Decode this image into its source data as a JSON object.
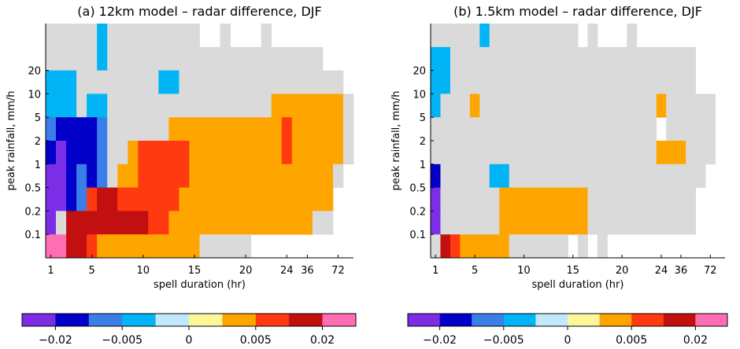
{
  "chart_data": [
    {
      "type": "heatmap",
      "title": "(a) 12km model – radar difference, DJF",
      "xlabel": "spell duration (hr)",
      "ylabel": "peak rainfall, mm/h",
      "x_ticks": [
        "1",
        "5",
        "10",
        "15",
        "20",
        "24",
        "36",
        "72"
      ],
      "y_ticks": [
        "0.1",
        "0.2",
        "0.5",
        "1",
        "2",
        "5",
        "10",
        "20"
      ],
      "colorbar": {
        "colors": [
          "#7b2ee6",
          "#0000c8",
          "#3a7ee8",
          "#00b4f5",
          "#c2e8fa",
          "#fff59a",
          "#ffa500",
          "#ff3a10",
          "#c21010",
          "#ff6eb4"
        ],
        "tick_labels": [
          "−0.02",
          "−0.005",
          "0",
          "0.005",
          "0.02"
        ]
      },
      "cells": [
        {
          "x0": 0,
          "x1": 5,
          "y0": 9,
          "y1": 10,
          "v": "0"
        },
        {
          "x0": 5,
          "x1": 6,
          "y0": 9,
          "y1": 10,
          "v": "-0.004"
        },
        {
          "x0": 6,
          "x1": 15,
          "y0": 9,
          "y1": 10,
          "v": "0"
        },
        {
          "x0": 17,
          "x1": 18,
          "y0": 9,
          "y1": 10,
          "v": "0"
        },
        {
          "x0": 21,
          "x1": 22,
          "y0": 9,
          "y1": 10,
          "v": "0"
        },
        {
          "x0": 0,
          "x1": 5,
          "y0": 8,
          "y1": 9,
          "v": "0"
        },
        {
          "x0": 5,
          "x1": 6,
          "y0": 8,
          "y1": 9,
          "v": "-0.004"
        },
        {
          "x0": 6,
          "x1": 27,
          "y0": 8,
          "y1": 9,
          "v": "0"
        },
        {
          "x0": 0,
          "x1": 3,
          "y0": 7,
          "y1": 8,
          "v": "-0.004"
        },
        {
          "x0": 3,
          "x1": 11,
          "y0": 7,
          "y1": 8,
          "v": "0"
        },
        {
          "x0": 11,
          "x1": 13,
          "y0": 7,
          "y1": 8,
          "v": "-0.004"
        },
        {
          "x0": 13,
          "x1": 29,
          "y0": 7,
          "y1": 8,
          "v": "0"
        },
        {
          "x0": 0,
          "x1": 3,
          "y0": 6,
          "y1": 7,
          "v": "-0.004"
        },
        {
          "x0": 3,
          "x1": 4,
          "y0": 6,
          "y1": 7,
          "v": "0"
        },
        {
          "x0": 4,
          "x1": 6,
          "y0": 6,
          "y1": 7,
          "v": "-0.004"
        },
        {
          "x0": 6,
          "x1": 22,
          "y0": 6,
          "y1": 7,
          "v": "0"
        },
        {
          "x0": 22,
          "x1": 29,
          "y0": 6,
          "y1": 7,
          "v": "0.004"
        },
        {
          "x0": 29,
          "x1": 30,
          "y0": 6,
          "y1": 7,
          "v": "0"
        },
        {
          "x0": 0,
          "x1": 1,
          "y0": 5,
          "y1": 6,
          "v": "-0.007"
        },
        {
          "x0": 1,
          "x1": 5,
          "y0": 5,
          "y1": 6,
          "v": "-0.01"
        },
        {
          "x0": 5,
          "x1": 6,
          "y0": 5,
          "y1": 6,
          "v": "-0.007"
        },
        {
          "x0": 6,
          "x1": 12,
          "y0": 5,
          "y1": 6,
          "v": "0"
        },
        {
          "x0": 12,
          "x1": 23,
          "y0": 5,
          "y1": 6,
          "v": "0.004"
        },
        {
          "x0": 23,
          "x1": 24,
          "y0": 5,
          "y1": 6,
          "v": "0.008"
        },
        {
          "x0": 24,
          "x1": 29,
          "y0": 5,
          "y1": 6,
          "v": "0.004"
        },
        {
          "x0": 29,
          "x1": 30,
          "y0": 5,
          "y1": 6,
          "v": "0"
        },
        {
          "x0": 0,
          "x1": 1,
          "y0": 4,
          "y1": 5,
          "v": "-0.015"
        },
        {
          "x0": 1,
          "x1": 2,
          "y0": 4,
          "y1": 5,
          "v": "-0.03"
        },
        {
          "x0": 2,
          "x1": 5,
          "y0": 4,
          "y1": 5,
          "v": "-0.015"
        },
        {
          "x0": 5,
          "x1": 6,
          "y0": 4,
          "y1": 5,
          "v": "-0.007"
        },
        {
          "x0": 6,
          "x1": 8,
          "y0": 4,
          "y1": 5,
          "v": "0"
        },
        {
          "x0": 8,
          "x1": 9,
          "y0": 4,
          "y1": 5,
          "v": "0.004"
        },
        {
          "x0": 9,
          "x1": 14,
          "y0": 4,
          "y1": 5,
          "v": "0.008"
        },
        {
          "x0": 14,
          "x1": 23,
          "y0": 4,
          "y1": 5,
          "v": "0.004"
        },
        {
          "x0": 23,
          "x1": 24,
          "y0": 4,
          "y1": 5,
          "v": "0.008"
        },
        {
          "x0": 24,
          "x1": 29,
          "y0": 4,
          "y1": 5,
          "v": "0.004"
        },
        {
          "x0": 29,
          "x1": 30,
          "y0": 4,
          "y1": 5,
          "v": "0"
        },
        {
          "x0": 0,
          "x1": 2,
          "y0": 3,
          "y1": 4,
          "v": "-0.03"
        },
        {
          "x0": 2,
          "x1": 3,
          "y0": 3,
          "y1": 4,
          "v": "-0.015"
        },
        {
          "x0": 3,
          "x1": 4,
          "y0": 3,
          "y1": 4,
          "v": "-0.007"
        },
        {
          "x0": 4,
          "x1": 5,
          "y0": 3,
          "y1": 4,
          "v": "-0.015"
        },
        {
          "x0": 5,
          "x1": 6,
          "y0": 3,
          "y1": 4,
          "v": "-0.007"
        },
        {
          "x0": 6,
          "x1": 7,
          "y0": 3,
          "y1": 4,
          "v": "0"
        },
        {
          "x0": 7,
          "x1": 9,
          "y0": 3,
          "y1": 4,
          "v": "0.004"
        },
        {
          "x0": 9,
          "x1": 14,
          "y0": 3,
          "y1": 4,
          "v": "0.008"
        },
        {
          "x0": 14,
          "x1": 28,
          "y0": 3,
          "y1": 4,
          "v": "0.004"
        },
        {
          "x0": 28,
          "x1": 29,
          "y0": 3,
          "y1": 4,
          "v": "0"
        },
        {
          "x0": 0,
          "x1": 2,
          "y0": 2,
          "y1": 3,
          "v": "-0.03"
        },
        {
          "x0": 2,
          "x1": 3,
          "y0": 2,
          "y1": 3,
          "v": "-0.015"
        },
        {
          "x0": 3,
          "x1": 4,
          "y0": 2,
          "y1": 3,
          "v": "-0.007"
        },
        {
          "x0": 4,
          "x1": 5,
          "y0": 2,
          "y1": 3,
          "v": "0.008"
        },
        {
          "x0": 5,
          "x1": 7,
          "y0": 2,
          "y1": 3,
          "v": "0.012"
        },
        {
          "x0": 7,
          "x1": 13,
          "y0": 2,
          "y1": 3,
          "v": "0.008"
        },
        {
          "x0": 13,
          "x1": 28,
          "y0": 2,
          "y1": 3,
          "v": "0.004"
        },
        {
          "x0": 0,
          "x1": 1,
          "y0": 1,
          "y1": 2,
          "v": "-0.03"
        },
        {
          "x0": 1,
          "x1": 2,
          "y0": 1,
          "y1": 2,
          "v": "0"
        },
        {
          "x0": 2,
          "x1": 8,
          "y0": 1,
          "y1": 2,
          "v": "0.02"
        },
        {
          "x0": 8,
          "x1": 10,
          "y0": 1,
          "y1": 2,
          "v": "0.012"
        },
        {
          "x0": 10,
          "x1": 12,
          "y0": 1,
          "y1": 2,
          "v": "0.008"
        },
        {
          "x0": 12,
          "x1": 26,
          "y0": 1,
          "y1": 2,
          "v": "0.004"
        },
        {
          "x0": 26,
          "x1": 28,
          "y0": 1,
          "y1": 2,
          "v": "0"
        },
        {
          "x0": 0,
          "x1": 2,
          "y0": 0,
          "y1": 1,
          "v": "0.03"
        },
        {
          "x0": 2,
          "x1": 3,
          "y0": 0,
          "y1": 1,
          "v": "0.02"
        },
        {
          "x0": 3,
          "x1": 4,
          "y0": 0,
          "y1": 1,
          "v": "0.012"
        },
        {
          "x0": 4,
          "x1": 5,
          "y0": 0,
          "y1": 1,
          "v": "0.008"
        },
        {
          "x0": 5,
          "x1": 15,
          "y0": 0,
          "y1": 1,
          "v": "0.004"
        },
        {
          "x0": 15,
          "x1": 20,
          "y0": 0,
          "y1": 1,
          "v": "0"
        }
      ]
    },
    {
      "type": "heatmap",
      "title": "(b) 1.5km model – radar difference, DJF",
      "xlabel": "spell duration (hr)",
      "ylabel": "peak rainfall, mm/h",
      "x_ticks": [
        "1",
        "5",
        "10",
        "15",
        "20",
        "24",
        "36",
        "72"
      ],
      "y_ticks": [
        "0.1",
        "0.2",
        "0.5",
        "1",
        "2",
        "5",
        "10",
        "20"
      ],
      "colorbar": {
        "colors": [
          "#7b2ee6",
          "#0000c8",
          "#3a7ee8",
          "#00b4f5",
          "#c2e8fa",
          "#fff59a",
          "#ffa500",
          "#ff3a10",
          "#c21010",
          "#ff6eb4"
        ],
        "tick_labels": [
          "−0.02",
          "−0.005",
          "0",
          "0.005",
          "0.02"
        ]
      },
      "cells": [
        {
          "x0": 0,
          "x1": 5,
          "y0": 9,
          "y1": 10,
          "v": "0"
        },
        {
          "x0": 5,
          "x1": 6,
          "y0": 9,
          "y1": 10,
          "v": "-0.004"
        },
        {
          "x0": 6,
          "x1": 15,
          "y0": 9,
          "y1": 10,
          "v": "0"
        },
        {
          "x0": 16,
          "x1": 17,
          "y0": 9,
          "y1": 10,
          "v": "0"
        },
        {
          "x0": 20,
          "x1": 21,
          "y0": 9,
          "y1": 10,
          "v": "0"
        },
        {
          "x0": 0,
          "x1": 2,
          "y0": 8,
          "y1": 9,
          "v": "-0.004"
        },
        {
          "x0": 2,
          "x1": 27,
          "y0": 8,
          "y1": 9,
          "v": "0"
        },
        {
          "x0": 0,
          "x1": 2,
          "y0": 7,
          "y1": 8,
          "v": "-0.004"
        },
        {
          "x0": 2,
          "x1": 27,
          "y0": 7,
          "y1": 8,
          "v": "0"
        },
        {
          "x0": 0,
          "x1": 1,
          "y0": 6,
          "y1": 7,
          "v": "-0.004"
        },
        {
          "x0": 1,
          "x1": 4,
          "y0": 6,
          "y1": 7,
          "v": "0"
        },
        {
          "x0": 4,
          "x1": 5,
          "y0": 6,
          "y1": 7,
          "v": "0.004"
        },
        {
          "x0": 5,
          "x1": 23,
          "y0": 6,
          "y1": 7,
          "v": "0"
        },
        {
          "x0": 23,
          "x1": 24,
          "y0": 6,
          "y1": 7,
          "v": "0.004"
        },
        {
          "x0": 24,
          "x1": 29,
          "y0": 6,
          "y1": 7,
          "v": "0"
        },
        {
          "x0": 0,
          "x1": 23,
          "y0": 5,
          "y1": 6,
          "v": "0"
        },
        {
          "x0": 24,
          "x1": 29,
          "y0": 5,
          "y1": 6,
          "v": "0"
        },
        {
          "x0": 0,
          "x1": 23,
          "y0": 4,
          "y1": 5,
          "v": "0"
        },
        {
          "x0": 23,
          "x1": 26,
          "y0": 4,
          "y1": 5,
          "v": "0.004"
        },
        {
          "x0": 26,
          "x1": 29,
          "y0": 4,
          "y1": 5,
          "v": "0"
        },
        {
          "x0": 0,
          "x1": 1,
          "y0": 3,
          "y1": 4,
          "v": "-0.01"
        },
        {
          "x0": 1,
          "x1": 6,
          "y0": 3,
          "y1": 4,
          "v": "0"
        },
        {
          "x0": 6,
          "x1": 8,
          "y0": 3,
          "y1": 4,
          "v": "-0.004"
        },
        {
          "x0": 8,
          "x1": 28,
          "y0": 3,
          "y1": 4,
          "v": "0"
        },
        {
          "x0": 0,
          "x1": 1,
          "y0": 2,
          "y1": 3,
          "v": "-0.03"
        },
        {
          "x0": 1,
          "x1": 7,
          "y0": 2,
          "y1": 3,
          "v": "0"
        },
        {
          "x0": 7,
          "x1": 16,
          "y0": 2,
          "y1": 3,
          "v": "0.004"
        },
        {
          "x0": 16,
          "x1": 27,
          "y0": 2,
          "y1": 3,
          "v": "0"
        },
        {
          "x0": 0,
          "x1": 1,
          "y0": 1,
          "y1": 2,
          "v": "-0.03"
        },
        {
          "x0": 1,
          "x1": 7,
          "y0": 1,
          "y1": 2,
          "v": "0"
        },
        {
          "x0": 7,
          "x1": 16,
          "y0": 1,
          "y1": 2,
          "v": "0.004"
        },
        {
          "x0": 16,
          "x1": 27,
          "y0": 1,
          "y1": 2,
          "v": "0"
        },
        {
          "x0": 0,
          "x1": 1,
          "y0": 0,
          "y1": 1,
          "v": "0"
        },
        {
          "x0": 1,
          "x1": 2,
          "y0": 0,
          "y1": 1,
          "v": "0.012"
        },
        {
          "x0": 2,
          "x1": 3,
          "y0": 0,
          "y1": 1,
          "v": "0.008"
        },
        {
          "x0": 3,
          "x1": 8,
          "y0": 0,
          "y1": 1,
          "v": "0.004"
        },
        {
          "x0": 8,
          "x1": 14,
          "y0": 0,
          "y1": 1,
          "v": "0"
        },
        {
          "x0": 15,
          "x1": 16,
          "y0": 0,
          "y1": 1,
          "v": "0"
        },
        {
          "x0": 17,
          "x1": 18,
          "y0": 0,
          "y1": 1,
          "v": "0"
        }
      ]
    }
  ]
}
